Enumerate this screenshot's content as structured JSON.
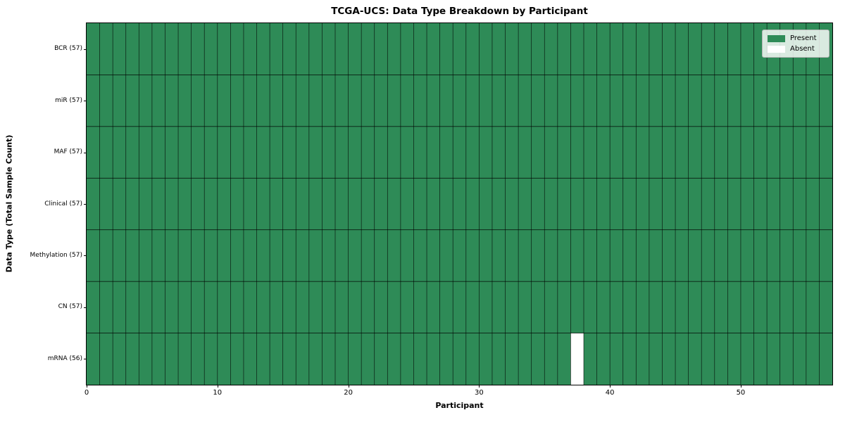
{
  "chart_data": {
    "type": "heatmap",
    "title": "TCGA-UCS: Data Type Breakdown by Participant",
    "xlabel": "Participant",
    "ylabel": "Data Type (Total Sample Count)",
    "n_participants": 57,
    "x_range": [
      0,
      57
    ],
    "x_ticks": [
      0,
      10,
      20,
      30,
      40,
      50
    ],
    "rows": [
      {
        "label": "BCR (57)",
        "data_type": "BCR",
        "present_count": 57,
        "absent_participants": []
      },
      {
        "label": "miR (57)",
        "data_type": "miR",
        "present_count": 57,
        "absent_participants": []
      },
      {
        "label": "MAF (57)",
        "data_type": "MAF",
        "present_count": 57,
        "absent_participants": []
      },
      {
        "label": "Clinical (57)",
        "data_type": "Clinical",
        "present_count": 57,
        "absent_participants": []
      },
      {
        "label": "Methylation (57)",
        "data_type": "Methylation",
        "present_count": 57,
        "absent_participants": []
      },
      {
        "label": "CN (57)",
        "data_type": "CN",
        "present_count": 57,
        "absent_participants": []
      },
      {
        "label": "mRNA (56)",
        "data_type": "mRNA",
        "present_count": 56,
        "absent_participants": [
          37
        ]
      }
    ],
    "legend": [
      {
        "label": "Present",
        "color": "#2E8B57"
      },
      {
        "label": "Absent",
        "color": "#FFFFFF"
      }
    ],
    "legend_position": "upper right",
    "grid": true,
    "colors": {
      "present": "#2E8B57",
      "absent": "#FFFFFF",
      "grid_line": "rgba(0,0,0,0.8)",
      "border": "#000000"
    }
  }
}
